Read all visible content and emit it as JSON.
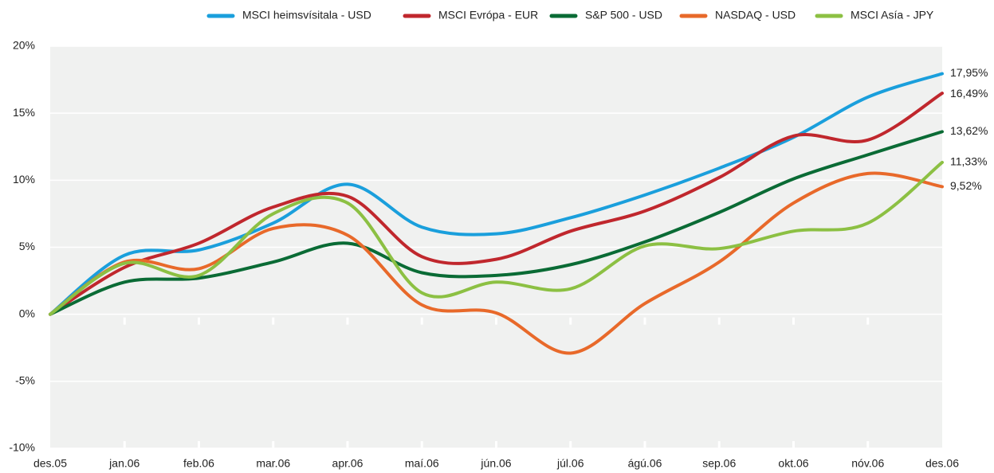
{
  "chart_data": {
    "type": "line",
    "categories": [
      "des.05",
      "jan.06",
      "feb.06",
      "mar.06",
      "apr.06",
      "maí.06",
      "jún.06",
      "júl.06",
      "ágú.06",
      "sep.06",
      "okt.06",
      "nóv.06",
      "des.06"
    ],
    "series": [
      {
        "name": "MSCI heimsvísitala - USD",
        "color": "#1a9fdc",
        "values": [
          0,
          4.4,
          4.8,
          6.8,
          9.7,
          6.5,
          6.0,
          7.2,
          8.9,
          10.9,
          13.2,
          16.2,
          17.95
        ],
        "value_labels": [
          null,
          null,
          null,
          null,
          null,
          null,
          null,
          null,
          null,
          null,
          null,
          null,
          "17,95%"
        ]
      },
      {
        "name": "MSCI Evrópa - EUR",
        "color": "#c0272d",
        "values": [
          0,
          3.5,
          5.3,
          8.0,
          8.8,
          4.3,
          4.1,
          6.2,
          7.7,
          10.2,
          13.3,
          13.0,
          16.49
        ],
        "value_labels": [
          null,
          null,
          null,
          null,
          null,
          null,
          null,
          null,
          null,
          null,
          null,
          null,
          "16,49%"
        ]
      },
      {
        "name": "S&P 500 - USD",
        "color": "#0a6b35",
        "values": [
          0,
          2.4,
          2.7,
          3.9,
          5.3,
          3.1,
          2.9,
          3.7,
          5.4,
          7.6,
          10.1,
          11.9,
          13.62
        ],
        "value_labels": [
          null,
          null,
          null,
          null,
          null,
          null,
          null,
          null,
          null,
          null,
          null,
          null,
          "13,62%"
        ]
      },
      {
        "name": "NASDAQ - USD",
        "color": "#e8692a",
        "values": [
          0,
          3.9,
          3.4,
          6.4,
          5.9,
          0.7,
          0.1,
          -2.9,
          0.8,
          3.9,
          8.3,
          10.5,
          9.52
        ],
        "value_labels": [
          null,
          null,
          null,
          null,
          null,
          null,
          null,
          null,
          null,
          null,
          null,
          null,
          "9,52%"
        ]
      },
      {
        "name": "MSCI Asía - JPY",
        "color": "#8cc043",
        "values": [
          0,
          3.8,
          2.9,
          7.5,
          8.3,
          1.6,
          2.4,
          1.9,
          5.1,
          4.9,
          6.2,
          6.8,
          11.33
        ],
        "value_labels": [
          null,
          null,
          null,
          null,
          null,
          null,
          null,
          null,
          null,
          null,
          null,
          null,
          "11,33%"
        ]
      }
    ],
    "ylim": [
      -10,
      20
    ],
    "yticks": [
      {
        "value": -10,
        "label": "-10%"
      },
      {
        "value": -5,
        "label": "-5%"
      },
      {
        "value": 0,
        "label": "0%"
      },
      {
        "value": 5,
        "label": "5%"
      },
      {
        "value": 10,
        "label": "10%"
      },
      {
        "value": 15,
        "label": "15%"
      },
      {
        "value": 20,
        "label": "20%"
      }
    ],
    "grid": true,
    "legend": "top"
  }
}
